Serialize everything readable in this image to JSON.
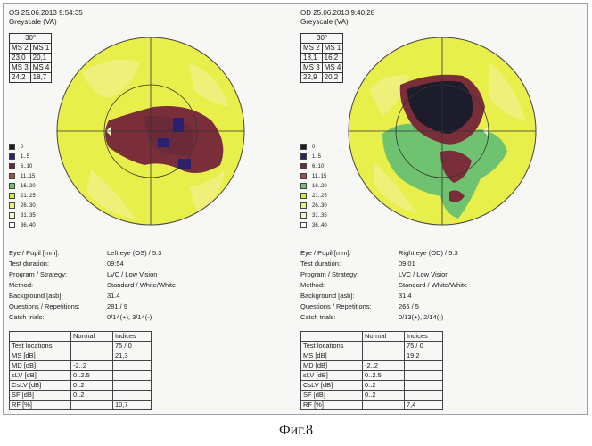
{
  "left": {
    "header": [
      "OS 25.06.2013 9:54:35",
      "Greyscale (VA)"
    ],
    "ms": {
      "angle": "30°",
      "cells": [
        "MS 2",
        "MS 1",
        "23,0",
        "20,1",
        "MS 3",
        "MS 4",
        "24,2",
        "18,7"
      ]
    },
    "info": [
      {
        "k": "Eye / Pupil [mm]:",
        "v": "Left eye (OS) / 5.3"
      },
      {
        "k": "Test duration:",
        "v": "09:54"
      },
      {
        "k": "Program / Strategy:",
        "v": "LVC / Low Vision"
      },
      {
        "k": "Method:",
        "v": "Standard / White/White"
      },
      {
        "k": "Background [asb]:",
        "v": "31.4"
      },
      {
        "k": "Questions / Repetitions:",
        "v": "281 / 9"
      },
      {
        "k": "Catch trials:",
        "v": "0/14(+), 3/14(-)"
      }
    ],
    "table": [
      [
        "",
        "Normal",
        "Indices"
      ],
      [
        "Test locations",
        "",
        "75 / 0"
      ],
      [
        "MS [dB]",
        "",
        "21,3"
      ],
      [
        "MD [dB]",
        "-2..2",
        ""
      ],
      [
        "sLV [dB]",
        "0..2.5",
        ""
      ],
      [
        "CsLV [dB]",
        "0..2",
        ""
      ],
      [
        "SF [dB]",
        "0..2",
        ""
      ],
      [
        "RF [%]",
        "",
        "10,7"
      ]
    ]
  },
  "right": {
    "header": [
      "OD 25.06.2013 9:40:28",
      "Greyscale (VA)"
    ],
    "ms": {
      "angle": "30°",
      "cells": [
        "MS 2",
        "MS 1",
        "18,1",
        "16,2",
        "MS 3",
        "MS 4",
        "22,9",
        "20,2"
      ]
    },
    "info": [
      {
        "k": "Eye / Pupil [mm]:",
        "v": "Right eye (OD) / 5.3"
      },
      {
        "k": "Test duration:",
        "v": "09:01"
      },
      {
        "k": "Program / Strategy:",
        "v": "LVC / Low Vision"
      },
      {
        "k": "Method:",
        "v": "Standard / White/White"
      },
      {
        "k": "Background [asb]:",
        "v": "31.4"
      },
      {
        "k": "Questions / Repetitions:",
        "v": "265 / 5"
      },
      {
        "k": "Catch trials:",
        "v": "0/13(+), 2/14(-)"
      }
    ],
    "table": [
      [
        "",
        "Normal",
        "Indices"
      ],
      [
        "Test locations",
        "",
        "75 / 0"
      ],
      [
        "MS [dB]",
        "",
        "19,2"
      ],
      [
        "MD [dB]",
        "-2..2",
        ""
      ],
      [
        "sLV [dB]",
        "0..2.5",
        ""
      ],
      [
        "CsLV [dB]",
        "0..2",
        ""
      ],
      [
        "SF [dB]",
        "0..2",
        ""
      ],
      [
        "RF [%]",
        "",
        "7,4"
      ]
    ]
  },
  "legend": [
    {
      "label": "0",
      "color": "#1c1c2a"
    },
    {
      "label": "1..5",
      "color": "#2a2070"
    },
    {
      "label": "6..10",
      "color": "#6a2a3a"
    },
    {
      "label": "11..15",
      "color": "#a0523a"
    },
    {
      "label": "16..20",
      "color": "#6fc26f"
    },
    {
      "label": "21..25",
      "color": "#d8e83a"
    },
    {
      "label": "26..30",
      "color": "#eef07a"
    },
    {
      "label": "31..35",
      "color": "#f5f5c8"
    },
    {
      "label": "36..40",
      "color": "#ffffff"
    }
  ],
  "caption": "Фиг.8"
}
